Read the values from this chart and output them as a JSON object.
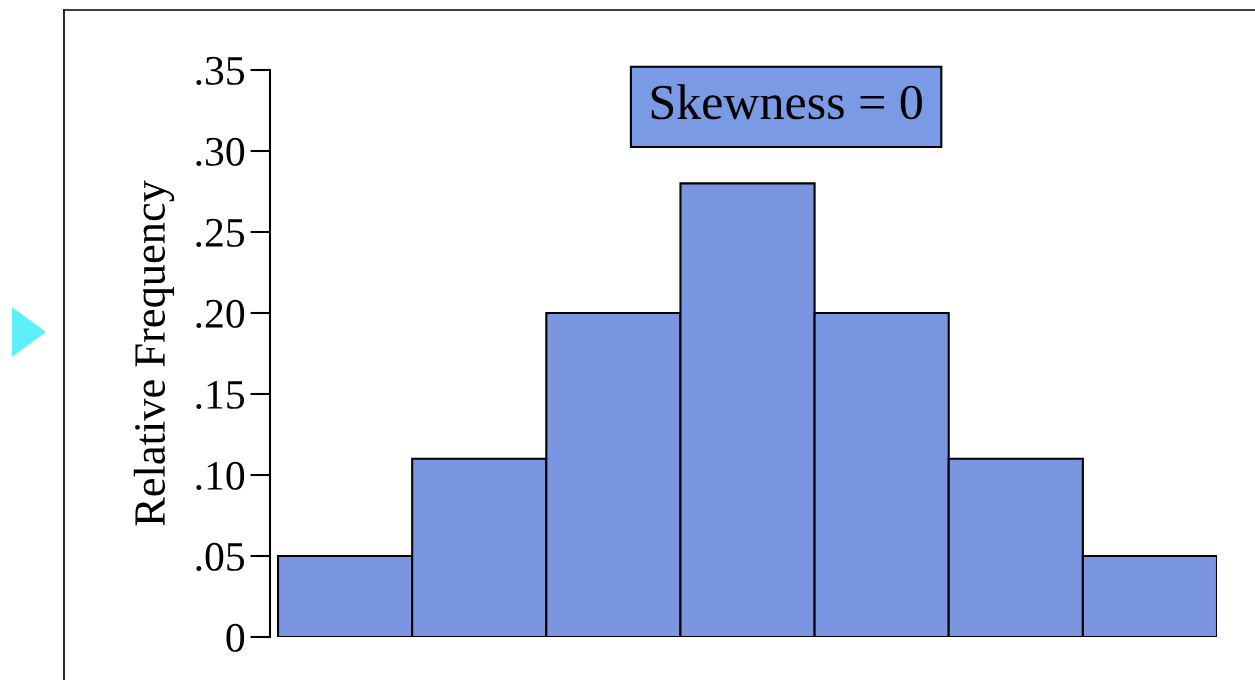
{
  "chart_data": {
    "type": "bar",
    "categories": [
      null,
      null,
      null,
      null,
      null,
      null,
      null
    ],
    "values": [
      0.05,
      0.11,
      0.2,
      0.28,
      0.2,
      0.11,
      0.05
    ],
    "color": "#7b96e0",
    "ylabel": "Relative Frequency",
    "ylim": [
      0,
      0.35
    ],
    "yticks": [
      {
        "value": 0,
        "label": "0"
      },
      {
        "value": 0.05,
        "label": ".05"
      },
      {
        "value": 0.1,
        "label": ".10"
      },
      {
        "value": 0.15,
        "label": ".15"
      },
      {
        "value": 0.2,
        "label": ".20"
      },
      {
        "value": 0.25,
        "label": ".25"
      },
      {
        "value": 0.3,
        "label": ".30"
      },
      {
        "value": 0.35,
        "label": ".35"
      }
    ],
    "annotations": [
      "Skewness = 0"
    ],
    "grid": false,
    "legend": false
  }
}
